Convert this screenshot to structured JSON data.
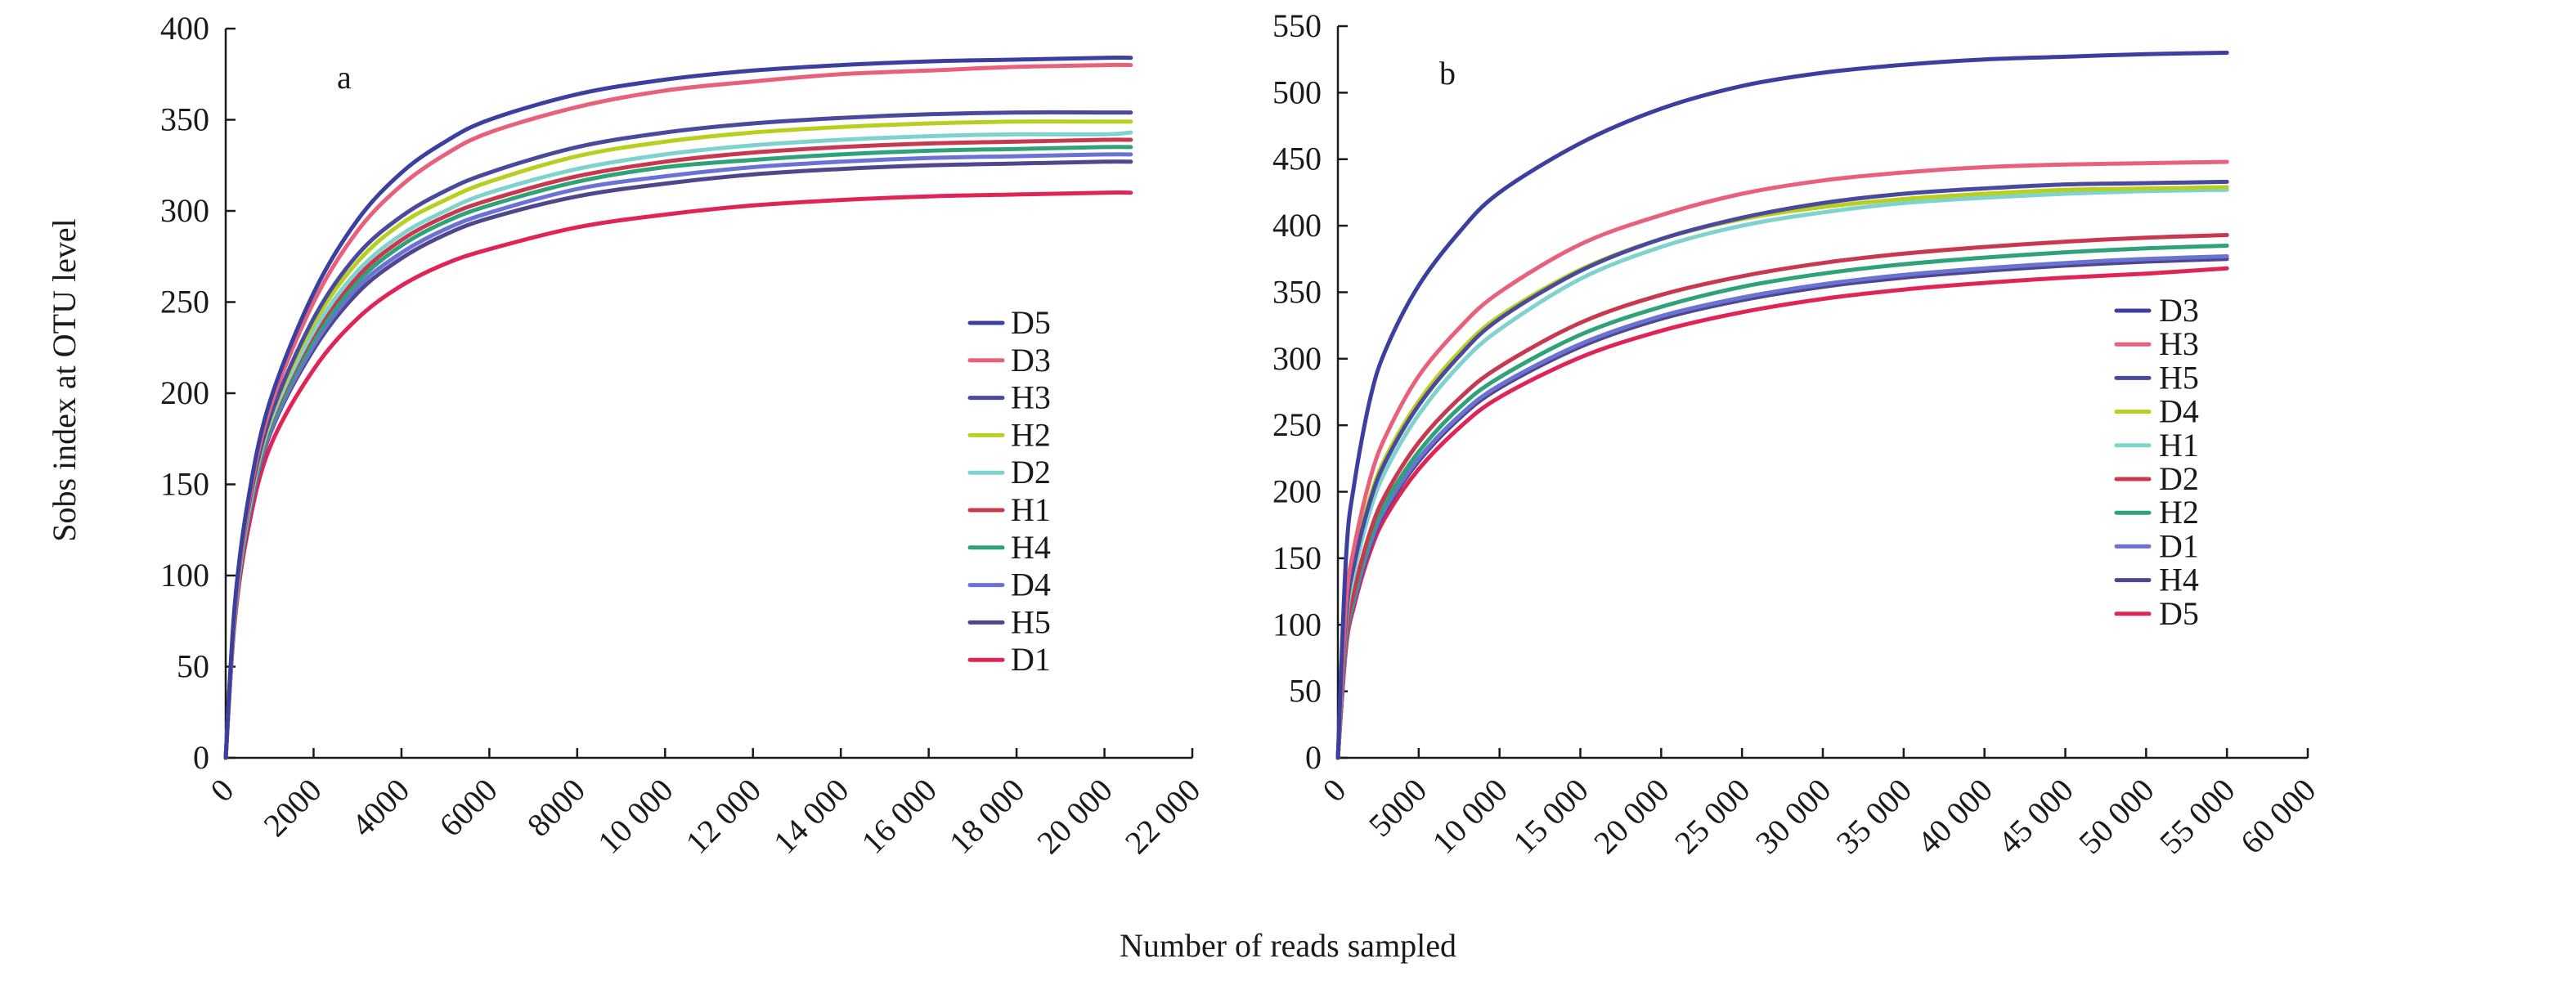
{
  "figure": {
    "ylabel": "Sobs index at OTU level",
    "xlabel": "Number of reads sampled"
  },
  "chart_data": [
    {
      "type": "line",
      "panel_label": "a",
      "xlim": [
        0,
        22000
      ],
      "ylim": [
        0,
        400
      ],
      "x_ticks": [
        0,
        2000,
        4000,
        6000,
        8000,
        10000,
        12000,
        14000,
        16000,
        18000,
        20000,
        22000
      ],
      "x_tick_labels": [
        "0",
        "2000",
        "4000",
        "6000",
        "8000",
        "10 000",
        "12 000",
        "14 000",
        "16 000",
        "18 000",
        "20 000",
        "22 000"
      ],
      "y_ticks": [
        0,
        50,
        100,
        150,
        200,
        250,
        300,
        350,
        400
      ],
      "y_tick_labels": [
        "0",
        "50",
        "100",
        "150",
        "200",
        "250",
        "300",
        "350",
        "400"
      ],
      "legend_position": "right",
      "x": [
        0,
        200,
        500,
        1000,
        2000,
        3000,
        4000,
        5000,
        6000,
        8000,
        10000,
        12000,
        14000,
        16000,
        18000,
        20000,
        20600
      ],
      "series": [
        {
          "name": "D5",
          "color": "#3b3fa0",
          "values": [
            0,
            82,
            140,
            195,
            255,
            295,
            321,
            338,
            350,
            364,
            372,
            377,
            380,
            382,
            383,
            384,
            384
          ]
        },
        {
          "name": "D3",
          "color": "#e8607a",
          "values": [
            0,
            80,
            137,
            191,
            250,
            289,
            314,
            331,
            343,
            357,
            366,
            371,
            375,
            377,
            379,
            380,
            380
          ]
        },
        {
          "name": "H3",
          "color": "#4a4a9c",
          "values": [
            0,
            79,
            135,
            186,
            241,
            276,
            297,
            311,
            321,
            335,
            343,
            348,
            351,
            353,
            354,
            354,
            354
          ]
        },
        {
          "name": "H2",
          "color": "#b9cf1f",
          "values": [
            0,
            78,
            134,
            185,
            238,
            272,
            293,
            306,
            316,
            330,
            338,
            343,
            346,
            348,
            349,
            349,
            349
          ]
        },
        {
          "name": "D2",
          "color": "#7fd3cf",
          "values": [
            0,
            77,
            132,
            183,
            234,
            267,
            287,
            300,
            310,
            323,
            331,
            336,
            339,
            341,
            342,
            342,
            343
          ]
        },
        {
          "name": "H1",
          "color": "#c8384f",
          "values": [
            0,
            77,
            131,
            182,
            232,
            264,
            284,
            297,
            306,
            319,
            327,
            332,
            335,
            337,
            338,
            339,
            339
          ]
        },
        {
          "name": "H4",
          "color": "#2fa27a",
          "values": [
            0,
            76,
            130,
            180,
            229,
            261,
            281,
            294,
            303,
            316,
            324,
            328,
            331,
            333,
            334,
            335,
            335
          ]
        },
        {
          "name": "D4",
          "color": "#6b72d6",
          "values": [
            0,
            76,
            129,
            178,
            226,
            258,
            277,
            290,
            299,
            312,
            319,
            324,
            327,
            329,
            330,
            331,
            331
          ]
        },
        {
          "name": "H5",
          "color": "#50468c",
          "values": [
            0,
            75,
            128,
            177,
            224,
            255,
            274,
            287,
            296,
            308,
            315,
            320,
            323,
            325,
            326,
            327,
            327
          ]
        },
        {
          "name": "D1",
          "color": "#e02456",
          "values": [
            0,
            73,
            124,
            170,
            213,
            241,
            259,
            271,
            279,
            291,
            298,
            303,
            306,
            308,
            309,
            310,
            310
          ]
        }
      ]
    },
    {
      "type": "line",
      "panel_label": "b",
      "xlim": [
        0,
        60000
      ],
      "ylim": [
        0,
        550
      ],
      "x_ticks": [
        0,
        5000,
        10000,
        15000,
        20000,
        25000,
        30000,
        35000,
        40000,
        45000,
        50000,
        55000,
        60000
      ],
      "x_tick_labels": [
        "0",
        "5000",
        "10 000",
        "15 000",
        "20 000",
        "25 000",
        "30 000",
        "35 000",
        "40 000",
        "45 000",
        "50 000",
        "55 000",
        "60 000"
      ],
      "y_ticks": [
        0,
        50,
        100,
        150,
        200,
        250,
        300,
        350,
        400,
        450,
        500,
        550
      ],
      "y_tick_labels": [
        "0",
        "50",
        "100",
        "150",
        "200",
        "250",
        "300",
        "350",
        "400",
        "450",
        "500",
        "550"
      ],
      "legend_position": "right",
      "x": [
        0,
        500,
        1000,
        2000,
        3000,
        5000,
        7500,
        10000,
        15000,
        20000,
        25000,
        30000,
        35000,
        40000,
        45000,
        50000,
        55000
      ],
      "series": [
        {
          "name": "D3",
          "color": "#3b3fa0",
          "values": [
            0,
            150,
            205,
            270,
            308,
            355,
            395,
            425,
            462,
            488,
            505,
            515,
            521,
            525,
            527,
            529,
            530
          ]
        },
        {
          "name": "H3",
          "color": "#e8607a",
          "values": [
            0,
            115,
            158,
            210,
            243,
            287,
            323,
            350,
            386,
            408,
            424,
            434,
            440,
            444,
            446,
            447,
            448
          ]
        },
        {
          "name": "H5",
          "color": "#4a4a9c",
          "values": [
            0,
            105,
            145,
            193,
            224,
            265,
            302,
            330,
            366,
            390,
            406,
            417,
            424,
            428,
            431,
            432,
            433
          ]
        },
        {
          "name": "D4",
          "color": "#b9cf1f",
          "values": [
            0,
            108,
            148,
            196,
            227,
            268,
            305,
            332,
            367,
            390,
            405,
            414,
            420,
            424,
            427,
            428,
            429
          ]
        },
        {
          "name": "H1",
          "color": "#7fd3cf",
          "values": [
            0,
            100,
            138,
            186,
            217,
            258,
            295,
            322,
            360,
            384,
            400,
            410,
            417,
            421,
            424,
            426,
            427
          ]
        },
        {
          "name": "D2",
          "color": "#c8384f",
          "values": [
            0,
            90,
            125,
            170,
            199,
            237,
            270,
            294,
            327,
            348,
            362,
            372,
            379,
            384,
            388,
            391,
            393
          ]
        },
        {
          "name": "H2",
          "color": "#2fa27a",
          "values": [
            0,
            87,
            121,
            165,
            193,
            230,
            263,
            286,
            318,
            339,
            354,
            364,
            371,
            376,
            380,
            383,
            385
          ]
        },
        {
          "name": "D1",
          "color": "#6b72d6",
          "values": [
            0,
            85,
            118,
            161,
            189,
            225,
            257,
            280,
            311,
            332,
            346,
            356,
            363,
            368,
            372,
            375,
            377
          ]
        },
        {
          "name": "H4",
          "color": "#50468c",
          "values": [
            0,
            84,
            117,
            159,
            187,
            223,
            255,
            278,
            309,
            330,
            344,
            354,
            361,
            366,
            370,
            373,
            375
          ]
        },
        {
          "name": "D5",
          "color": "#e02456",
          "values": [
            0,
            82,
            114,
            155,
            182,
            217,
            248,
            271,
            301,
            321,
            335,
            345,
            352,
            357,
            361,
            364,
            368
          ]
        }
      ]
    }
  ]
}
